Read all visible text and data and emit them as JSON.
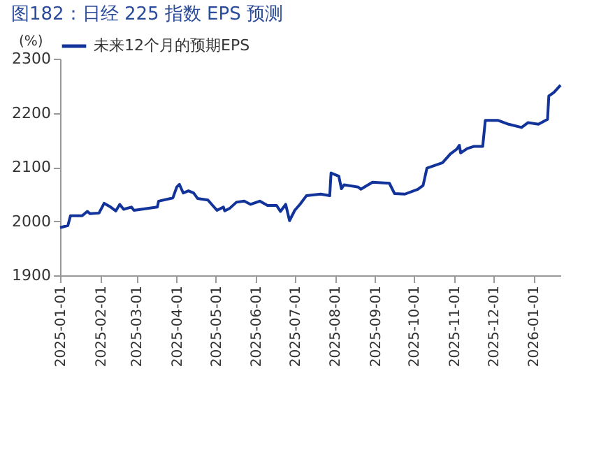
{
  "chart_data": {
    "type": "line",
    "title": "图182：日经 225 指数 EPS 预测",
    "ylabel": "(%)",
    "x": [
      "2025-01-01",
      "2025-01-07",
      "2025-01-09",
      "2025-01-18",
      "2025-01-22",
      "2025-01-24",
      "2025-01-31",
      "2025-02-04",
      "2025-02-09",
      "2025-02-13",
      "2025-02-16",
      "2025-02-19",
      "2025-02-25",
      "2025-02-27",
      "2025-03-17",
      "2025-03-18",
      "2025-03-29",
      "2025-04-01",
      "2025-04-03",
      "2025-04-06",
      "2025-04-10",
      "2025-04-14",
      "2025-04-17",
      "2025-04-25",
      "2025-05-02",
      "2025-05-07",
      "2025-05-08",
      "2025-05-12",
      "2025-05-17",
      "2025-05-23",
      "2025-05-28",
      "2025-06-04",
      "2025-06-10",
      "2025-06-17",
      "2025-06-20",
      "2025-06-24",
      "2025-06-27",
      "2025-07-01",
      "2025-07-05",
      "2025-07-10",
      "2025-07-21",
      "2025-07-28",
      "2025-07-29",
      "2025-08-02",
      "2025-08-04",
      "2025-08-06",
      "2025-08-08",
      "2025-08-19",
      "2025-08-21",
      "2025-08-30",
      "2025-09-12",
      "2025-09-16",
      "2025-09-24",
      "2025-10-04",
      "2025-10-08",
      "2025-10-11",
      "2025-10-23",
      "2025-10-29",
      "2025-11-03",
      "2025-11-05",
      "2025-11-06",
      "2025-11-11",
      "2025-11-16",
      "2025-11-23",
      "2025-11-25",
      "2025-12-05",
      "2025-12-13",
      "2025-12-23",
      "2025-12-28",
      "2026-01-05",
      "2026-01-12",
      "2026-01-13",
      "2026-01-17",
      "2026-01-22"
    ],
    "series": [
      {
        "name": "未来12个月的预期EPS",
        "color": "#12339a",
        "values": [
          1988,
          1992,
          2010,
          2010,
          2018,
          2014,
          2015,
          2033,
          2026,
          2019,
          2031,
          2022,
          2026,
          2020,
          2026,
          2037,
          2043,
          2063,
          2068,
          2052,
          2056,
          2052,
          2042,
          2039,
          2020,
          2026,
          2019,
          2024,
          2035,
          2037,
          2031,
          2037,
          2029,
          2029,
          2018,
          2031,
          2001,
          2020,
          2031,
          2047,
          2050,
          2047,
          2089,
          2085,
          2083,
          2060,
          2067,
          2063,
          2059,
          2072,
          2070,
          2051,
          2050,
          2059,
          2066,
          2098,
          2108,
          2124,
          2133,
          2140,
          2126,
          2134,
          2138,
          2138,
          2186,
          2186,
          2179,
          2173,
          2182,
          2179,
          2188,
          2231,
          2238,
          2251
        ]
      }
    ],
    "xlim": [
      "2025-01-01",
      "2026-01-22"
    ],
    "xticks": [
      "2025-01-01",
      "2025-02-01",
      "2025-03-01",
      "2025-04-01",
      "2025-05-01",
      "2025-06-01",
      "2025-07-01",
      "2025-08-01",
      "2025-09-01",
      "2025-10-01",
      "2025-11-01",
      "2025-12-01",
      "2026-01-01"
    ],
    "ylim": [
      1900,
      2300
    ],
    "yticks": [
      1900,
      2000,
      2100,
      2200,
      2300
    ],
    "grid": false,
    "legend": "top",
    "line_style": "solid",
    "marker": "none"
  }
}
